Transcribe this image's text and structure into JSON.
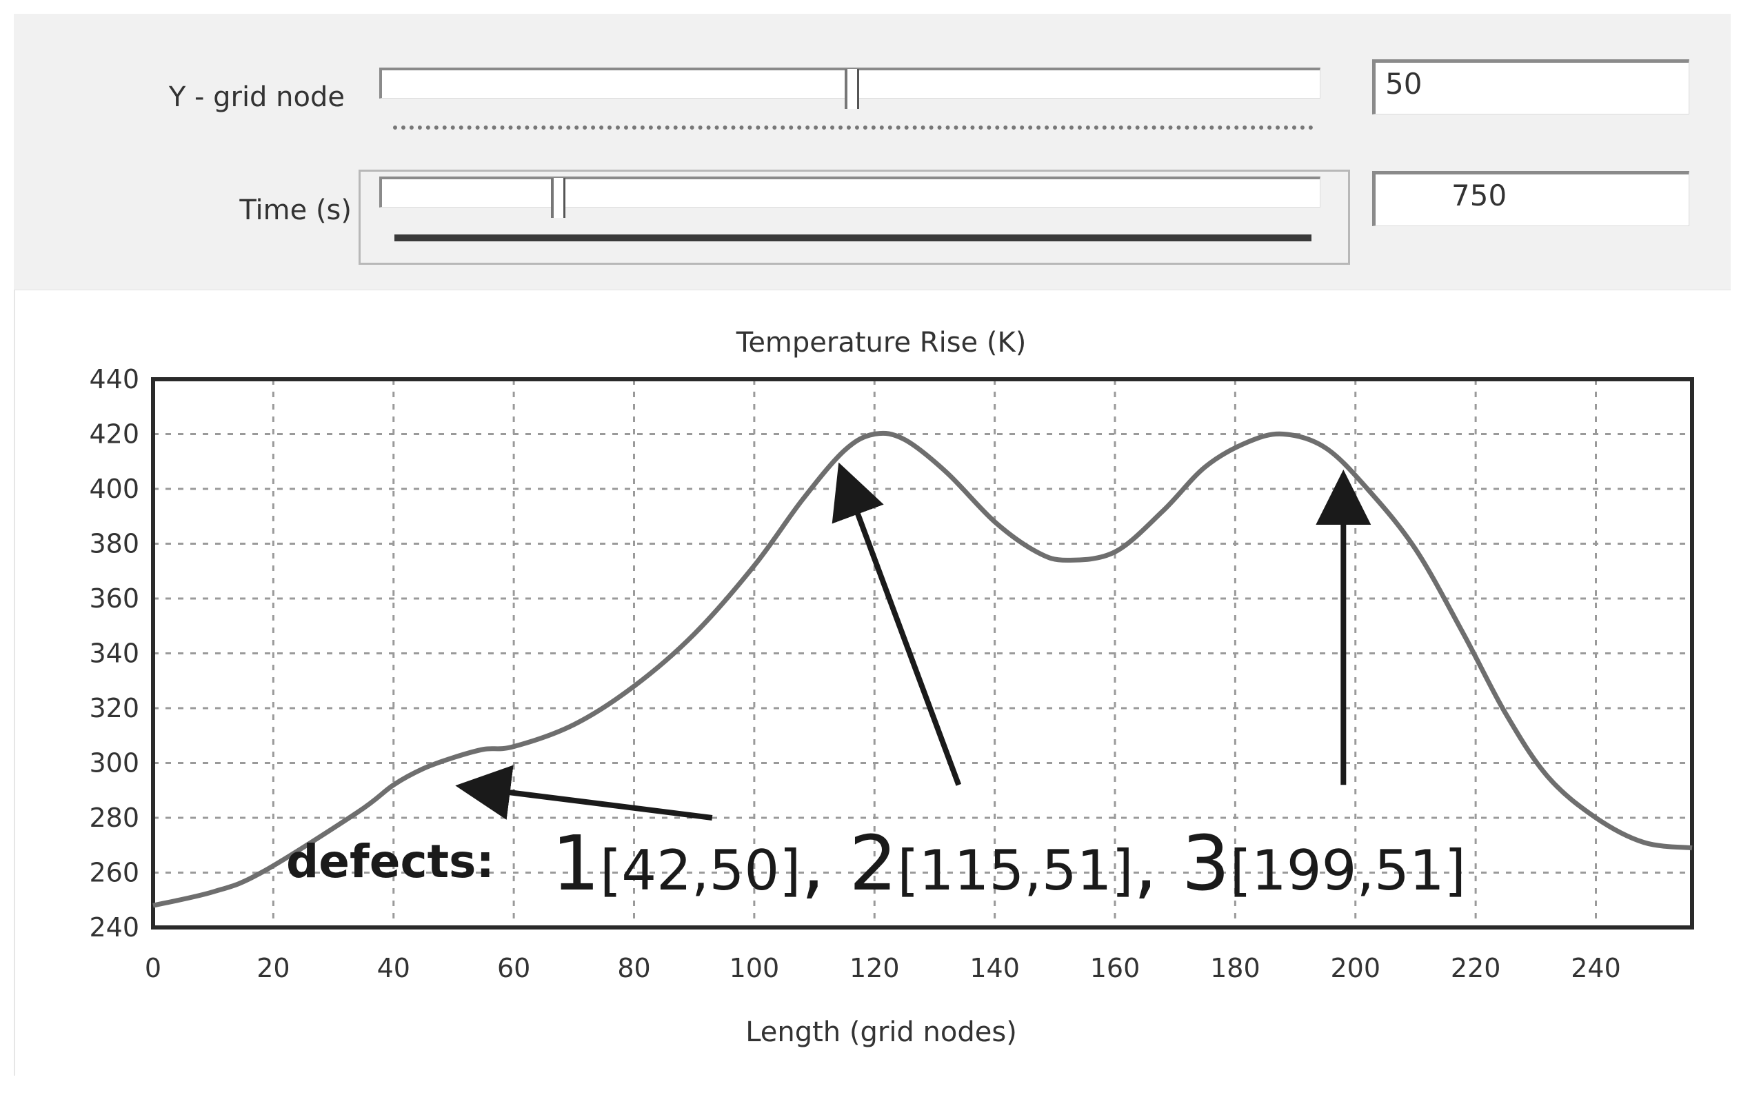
{
  "controls": {
    "y_grid_node": {
      "label": "Y - grid node",
      "value": "50",
      "position": 0.5
    },
    "time": {
      "label": "Time (s)",
      "value": "750",
      "position": 0.18
    }
  },
  "annotation": {
    "prefix": "defects:",
    "defects": [
      {
        "id": "1",
        "coords": "[42,50]",
        "separator": ", "
      },
      {
        "id": "2",
        "coords": "[115,51]",
        "separator": ", "
      },
      {
        "id": "3",
        "coords": "[199,51]",
        "separator": ""
      }
    ],
    "arrows": [
      {
        "name": "defect-1-arrow",
        "from": [
          93,
          280
        ],
        "to": [
          53,
          291
        ]
      },
      {
        "name": "defect-2-arrow",
        "from": [
          134,
          292
        ],
        "to": [
          115,
          404
        ]
      },
      {
        "name": "defect-3-arrow",
        "from": [
          198,
          292
        ],
        "to": [
          198,
          401
        ]
      }
    ]
  },
  "chart_data": {
    "type": "line",
    "title": "Temperature Rise (K)",
    "xlabel": "Length (grid nodes)",
    "ylabel": "",
    "xlim": [
      0,
      256
    ],
    "ylim": [
      240,
      440
    ],
    "x_ticks": [
      0,
      20,
      40,
      60,
      80,
      100,
      120,
      140,
      160,
      180,
      200,
      220,
      240
    ],
    "y_ticks": [
      240,
      260,
      280,
      300,
      320,
      340,
      360,
      380,
      400,
      420,
      440
    ],
    "grid": true,
    "color": "#6e6e6e",
    "series": [
      {
        "x": [
          0,
          10,
          18,
          34,
          40,
          45,
          50,
          55,
          60,
          70,
          80,
          90,
          100,
          108,
          115,
          120,
          125,
          132,
          140,
          147,
          152,
          160,
          168,
          175,
          182,
          188,
          195,
          202,
          210,
          218,
          225,
          232,
          240,
          248,
          256
        ],
        "y": [
          248,
          253,
          260,
          282,
          292,
          298,
          302,
          305,
          306,
          314,
          328,
          347,
          372,
          396,
          414,
          420,
          418,
          406,
          388,
          377,
          374,
          377,
          392,
          408,
          417,
          420,
          415,
          400,
          378,
          347,
          318,
          295,
          280,
          271,
          269
        ]
      }
    ]
  }
}
